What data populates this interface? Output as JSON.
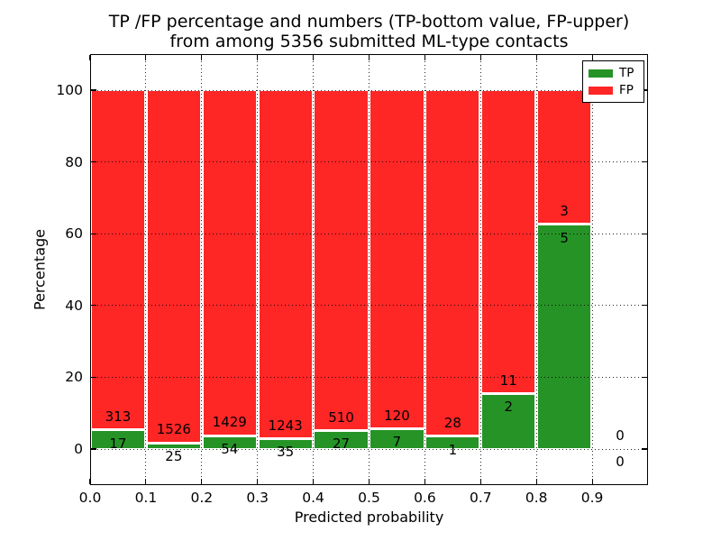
{
  "title": {
    "line1": "TP /FP percentage and numbers (TP-bottom value, FP-upper)",
    "line2": "from among 5356 submitted ML-type contacts"
  },
  "axes": {
    "xlabel": "Predicted probability",
    "ylabel": "Percentage"
  },
  "legend": {
    "items": [
      {
        "label": "TP",
        "color": "#269326"
      },
      {
        "label": "FP",
        "color": "#ff2626"
      }
    ]
  },
  "colors": {
    "tp_green": "#269326",
    "fp_red": "#ff2626",
    "grid": "#000000",
    "text": "#000000",
    "background": "#ffffff"
  },
  "chart_data": {
    "type": "bar",
    "stacked": true,
    "title": "TP /FP percentage and numbers (TP-bottom value, FP-upper) from among 5356 submitted ML-type contacts",
    "xlabel": "Predicted probability",
    "ylabel": "Percentage",
    "xlim": [
      0.0,
      1.0
    ],
    "ylim": [
      -10,
      110
    ],
    "grid": "dotted",
    "legend_position": "upper right",
    "total_contacts": 5356,
    "x_tick_labels": [
      "0.0",
      "0.1",
      "0.2",
      "0.3",
      "0.4",
      "0.5",
      "0.6",
      "0.7",
      "0.8",
      "0.9"
    ],
    "x_tick_values": [
      0.0,
      0.1,
      0.2,
      0.3,
      0.4,
      0.5,
      0.6,
      0.7,
      0.8,
      0.9
    ],
    "y_ticks": [
      0,
      20,
      40,
      60,
      80,
      100
    ],
    "bin_edges": [
      0.0,
      0.1,
      0.2,
      0.3,
      0.4,
      0.5,
      0.6,
      0.7,
      0.8,
      0.9,
      1.0
    ],
    "series": [
      {
        "name": "TP",
        "color": "#269326",
        "counts": [
          17,
          25,
          54,
          35,
          27,
          7,
          1,
          2,
          5,
          0
        ]
      },
      {
        "name": "FP",
        "color": "#ff2626",
        "counts": [
          313,
          1526,
          1429,
          1243,
          510,
          120,
          28,
          11,
          3,
          0
        ]
      }
    ],
    "bar_value_labels_fp": [
      "313",
      "1526",
      "1429",
      "1243",
      "510",
      "120",
      "28",
      "11",
      "3",
      "0"
    ],
    "bar_value_labels_tp": [
      "17",
      "25",
      "54",
      "35",
      "27",
      "7",
      "1",
      "2",
      "5",
      "0"
    ],
    "tp_percent_of_bin": [
      5.15,
      1.61,
      3.64,
      2.74,
      5.03,
      5.51,
      3.45,
      15.38,
      62.5,
      0
    ]
  }
}
